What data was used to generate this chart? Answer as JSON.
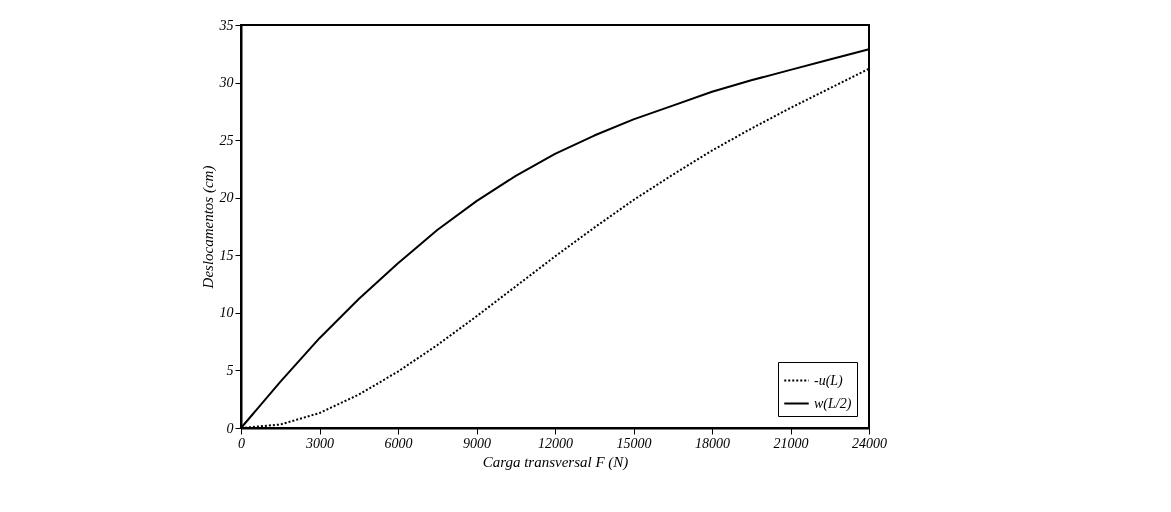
{
  "chart_data": {
    "type": "line",
    "xlabel": "Carga transversal F (N)",
    "ylabel": "Deslocamentos (cm)",
    "x": [
      0,
      1500,
      3000,
      4500,
      6000,
      7500,
      9000,
      10500,
      12000,
      13500,
      15000,
      16500,
      18000,
      19500,
      21000,
      22500,
      24000
    ],
    "series": [
      {
        "name": "-u(L)",
        "color": "#000000",
        "line_style": "dotted",
        "values": [
          0,
          0.3,
          1.3,
          2.9,
          4.9,
          7.2,
          9.7,
          12.3,
          14.9,
          17.4,
          19.8,
          22.0,
          24.1,
          26.0,
          27.8,
          29.5,
          31.2
        ]
      },
      {
        "name": "w(L/2)",
        "color": "#000000",
        "line_style": "solid",
        "values": [
          0,
          4.0,
          7.8,
          11.2,
          14.3,
          17.2,
          19.7,
          21.9,
          23.8,
          25.4,
          26.8,
          28.0,
          29.2,
          30.2,
          31.1,
          32.0,
          32.9
        ]
      }
    ],
    "xlim": [
      0,
      24000
    ],
    "xticks": [
      0,
      3000,
      6000,
      9000,
      12000,
      15000,
      18000,
      21000,
      24000
    ],
    "ylim": [
      0,
      35
    ],
    "yticks": [
      0,
      5,
      10,
      15,
      20,
      25,
      30,
      35
    ],
    "grid": false,
    "legend": "bottom right",
    "marker": "none"
  }
}
